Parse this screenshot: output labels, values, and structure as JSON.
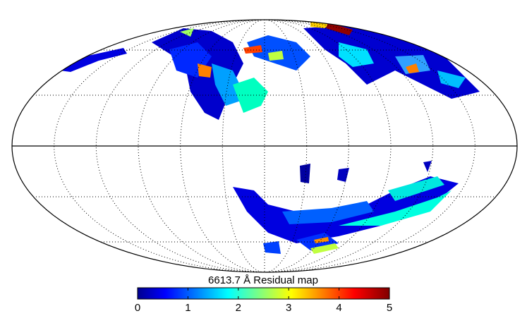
{
  "map": {
    "title": "6613.7 Å  Residual map",
    "projection": "mollweide"
  },
  "colorbar": {
    "colormap": "jet",
    "lim": [
      0,
      5
    ],
    "ticks": [
      0,
      1,
      2,
      3,
      4,
      5
    ]
  }
}
